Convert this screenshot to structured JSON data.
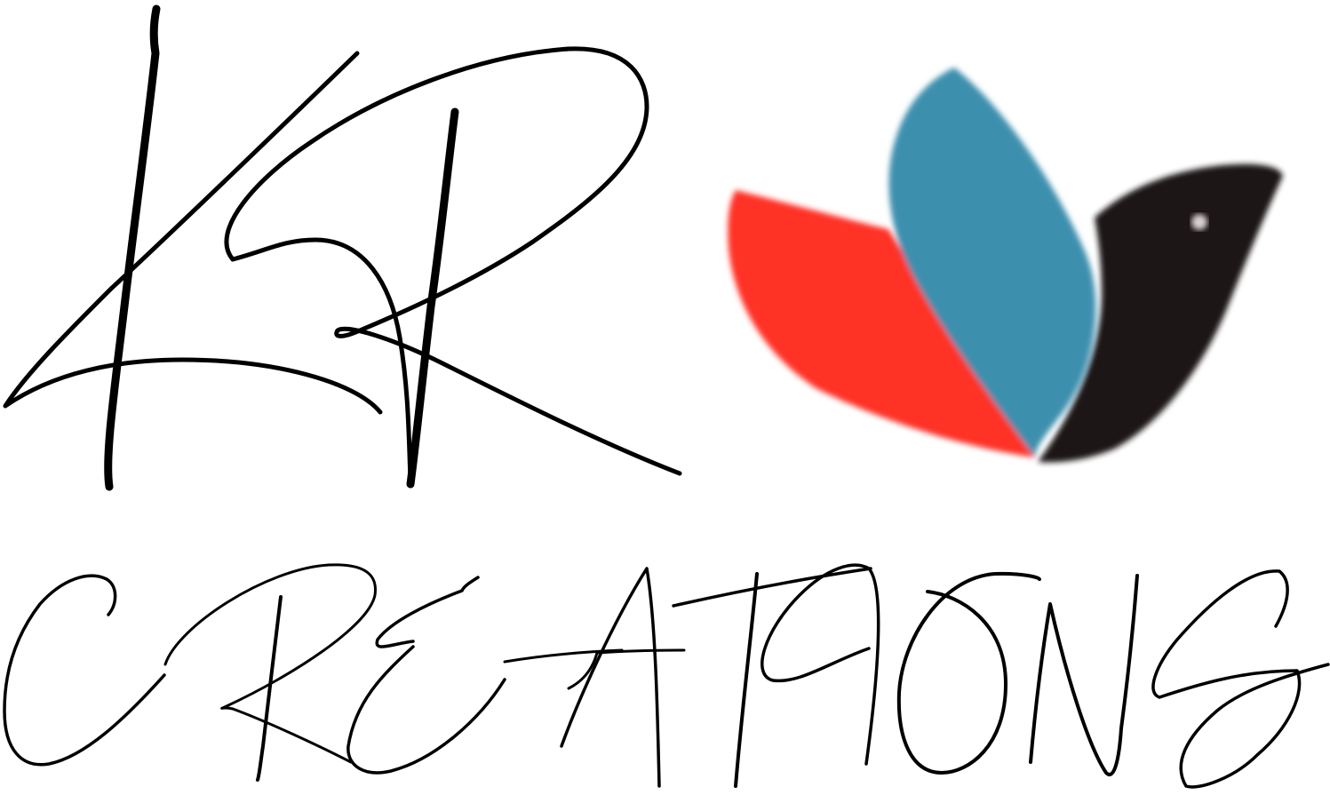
{
  "logo": {
    "monogram_text": "KR",
    "wordmark_text": "CREATIONS",
    "colors": {
      "ink": "#000000",
      "background": "#ffffff",
      "petal_red": "#ff3127",
      "petal_blue": "#3c8fae",
      "petal_black": "#1b1416"
    },
    "icon": "three-petal-bird-icon"
  }
}
